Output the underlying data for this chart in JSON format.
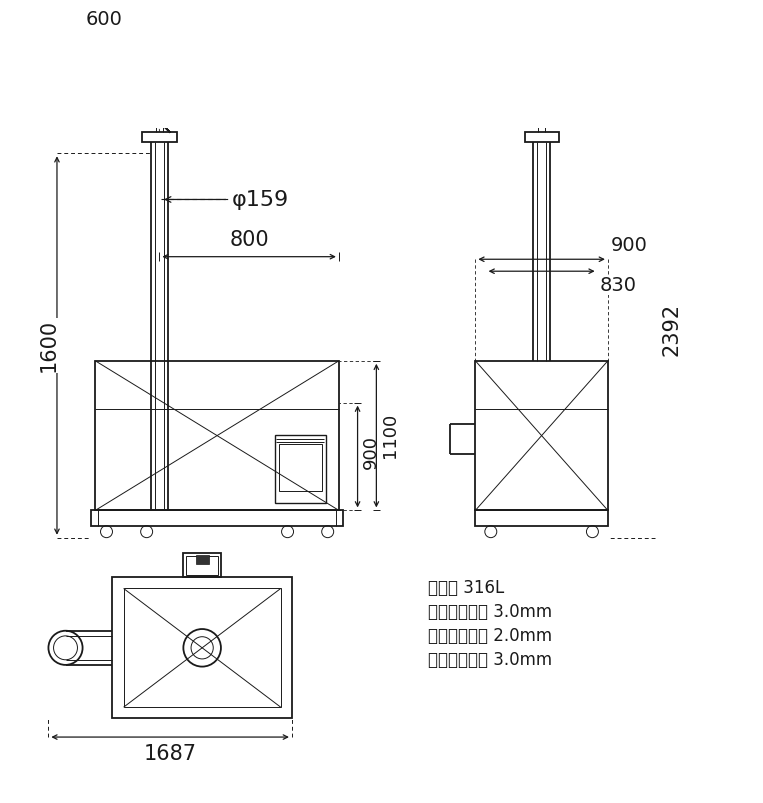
{
  "bg_color": "#ffffff",
  "line_color": "#1a1a1a",
  "annotations": {
    "phi159": "φ159",
    "dim600": "600",
    "dim800": "800",
    "dim1600": "1600",
    "dim900_right": "900",
    "dim830": "830",
    "dim2392": "2392",
    "dim900_side": "900",
    "dim1100": "1100",
    "dim1687": "1687"
  },
  "spec_lines": [
    "材质： 316L",
    "螺旋管壁厚： 3.0mm",
    "储料仓板厚： 2.0mm",
    "螺旋叶片厚： 3.0mm"
  ],
  "font_size_dim": 14,
  "font_size_spec": 11
}
